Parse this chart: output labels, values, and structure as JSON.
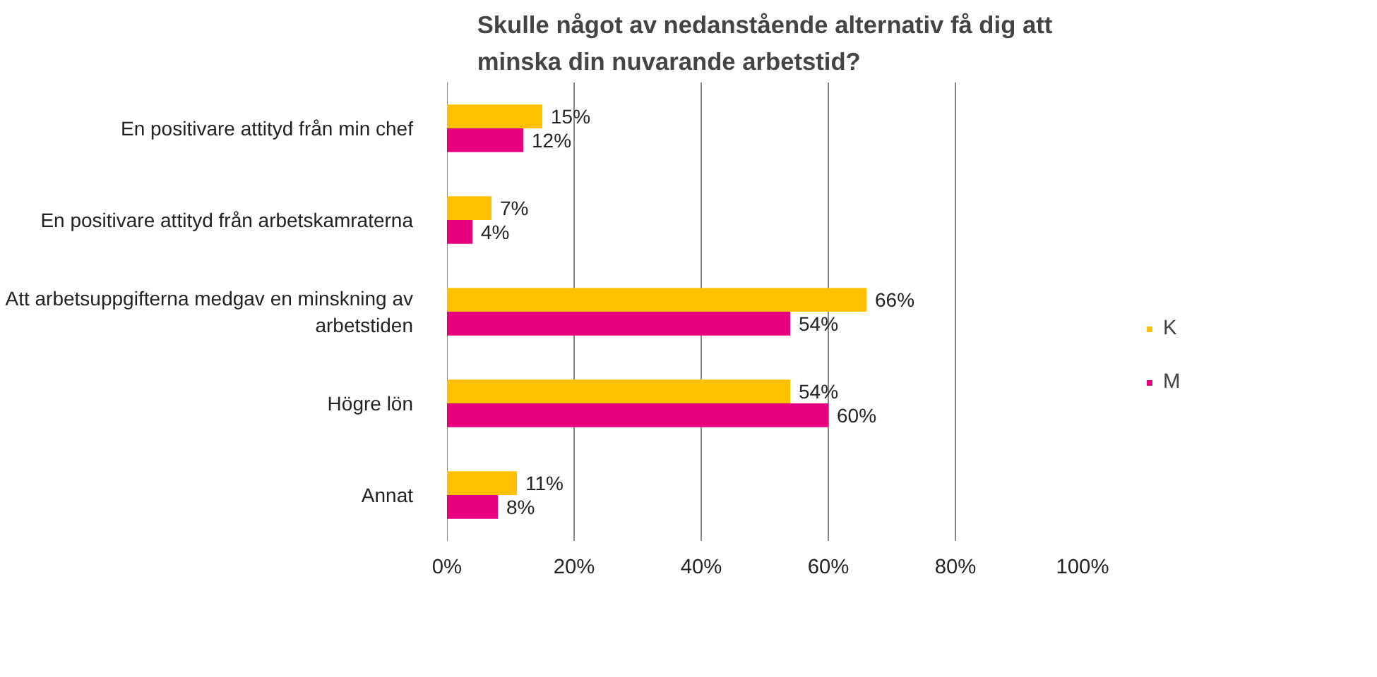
{
  "chart_data": {
    "type": "bar",
    "orientation": "horizontal",
    "title": "Skulle något av nedanstående alternativ få dig att minska din nuvarande arbetstid?",
    "categories": [
      "En positivare attityd från min chef",
      "En positivare attityd från arbetskamraterna",
      "Att arbetsuppgifterna medgav en minskning av arbetstiden",
      "Högre lön",
      "Annat"
    ],
    "series": [
      {
        "name": "K",
        "color": "#ffc000",
        "values": [
          15,
          7,
          66,
          54,
          11
        ],
        "value_labels": [
          "15%",
          "7%",
          "66%",
          "54%",
          "11%"
        ]
      },
      {
        "name": "M",
        "color": "#e6007e",
        "values": [
          12,
          4,
          54,
          60,
          8
        ],
        "value_labels": [
          "12%",
          "4%",
          "54%",
          "60%",
          "8%"
        ]
      }
    ],
    "xlim": [
      0,
      100
    ],
    "xticks": [
      {
        "value": 0,
        "label": "0%"
      },
      {
        "value": 20,
        "label": "20%"
      },
      {
        "value": 40,
        "label": "40%"
      },
      {
        "value": 60,
        "label": "60%"
      },
      {
        "value": 80,
        "label": "80%"
      },
      {
        "value": 100,
        "label": "100%"
      }
    ],
    "grid": "x",
    "legend": "right"
  }
}
